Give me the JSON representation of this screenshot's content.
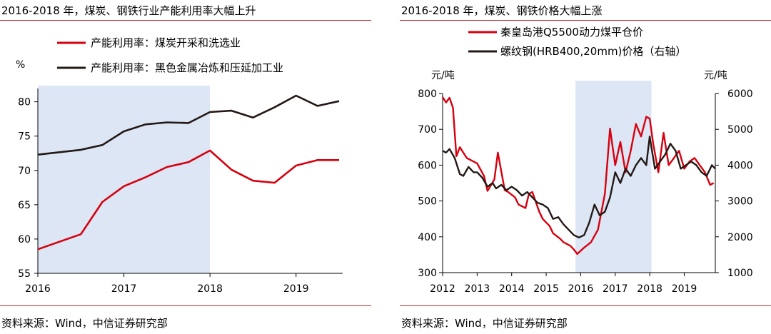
{
  "left": {
    "title": "2016-2018 年，煤炭、钢铁行业产能利用率大幅上升",
    "source": "资料来源：Wind，中信证券研究部"
  },
  "right": {
    "title": "2016-2018 年，煤炭、钢铁价格大幅上涨",
    "source": "资料来源：Wind，中信证券研究部"
  },
  "colors": {
    "red": "#d7000f",
    "black": "#231815",
    "shade": "#dce6f4",
    "rule": "#c0302b"
  },
  "chart_data": [
    {
      "type": "line",
      "title": "",
      "ylabel": "%",
      "xlim": [
        2016,
        2019.5
      ],
      "ylim": [
        55,
        81
      ],
      "yticks": [
        55,
        60,
        65,
        70,
        75,
        80
      ],
      "xticks": [
        2016,
        2017,
        2018,
        2019
      ],
      "shaded_range": [
        2016,
        2018
      ],
      "legend": "top",
      "series": [
        {
          "name": "产能利用率：煤炭开采和洗选业",
          "color": "#d7000f",
          "x": [
            2016,
            2016.5,
            2016.75,
            2017,
            2017.25,
            2017.5,
            2017.75,
            2018,
            2018.25,
            2018.5,
            2018.75,
            2019,
            2019.25,
            2019.5
          ],
          "y": [
            58.5,
            60.7,
            65.4,
            67.7,
            69.0,
            70.5,
            71.2,
            72.9,
            70.1,
            68.5,
            68.2,
            70.7,
            71.5,
            71.5
          ]
        },
        {
          "name": "产能利用率：黑色金属冶炼和压延加工业",
          "color": "#231815",
          "x": [
            2016,
            2016.5,
            2016.75,
            2017,
            2017.25,
            2017.5,
            2017.75,
            2018,
            2018.25,
            2018.5,
            2018.75,
            2019,
            2019.25,
            2019.5
          ],
          "y": [
            72.3,
            73.0,
            73.7,
            75.7,
            76.7,
            77.0,
            76.9,
            78.5,
            78.7,
            77.7,
            79.2,
            80.9,
            79.4,
            80.1
          ]
        }
      ]
    },
    {
      "type": "line",
      "title": "",
      "ylabel": "元/吨",
      "y2label": "元/吨",
      "xlim": [
        2012,
        2019.9
      ],
      "ylim": [
        300,
        800
      ],
      "y2lim": [
        1000,
        6000
      ],
      "yticks": [
        300,
        400,
        500,
        600,
        700,
        800
      ],
      "y2ticks": [
        1000,
        2000,
        3000,
        4000,
        5000,
        6000
      ],
      "xticks": [
        2012,
        2013,
        2014,
        2015,
        2016,
        2017,
        2018,
        2019
      ],
      "shaded_range": [
        2015.85,
        2018.05
      ],
      "legend": "top",
      "series": [
        {
          "name": "秦皇岛港Q5500动力煤平仓价",
          "color": "#d7000f",
          "axis": "left",
          "x": [
            2012.0,
            2012.1,
            2012.2,
            2012.3,
            2012.4,
            2012.5,
            2012.7,
            2012.8,
            2013.0,
            2013.2,
            2013.3,
            2013.5,
            2013.6,
            2013.8,
            2013.9,
            2014.1,
            2014.2,
            2014.4,
            2014.5,
            2014.6,
            2014.8,
            2014.9,
            2015.1,
            2015.2,
            2015.4,
            2015.5,
            2015.7,
            2015.8,
            2015.9,
            2016.1,
            2016.3,
            2016.5,
            2016.7,
            2016.85,
            2017.0,
            2017.15,
            2017.3,
            2017.45,
            2017.6,
            2017.75,
            2017.9,
            2018.0,
            2018.1,
            2018.25,
            2018.4,
            2018.55,
            2018.7,
            2018.85,
            2019.0,
            2019.15,
            2019.3,
            2019.45,
            2019.6,
            2019.75,
            2019.85
          ],
          "y": [
            790,
            775,
            788,
            760,
            625,
            650,
            620,
            615,
            605,
            570,
            528,
            560,
            635,
            530,
            525,
            510,
            490,
            480,
            520,
            525,
            470,
            450,
            430,
            410,
            395,
            385,
            375,
            365,
            352,
            370,
            385,
            420,
            520,
            702,
            600,
            665,
            580,
            640,
            715,
            680,
            735,
            730,
            660,
            580,
            690,
            600,
            620,
            640,
            590,
            610,
            620,
            600,
            580,
            545,
            550
          ]
        },
        {
          "name": "螺纹钢(HRB400,20mm)价格（右轴）",
          "color": "#231815",
          "axis": "right",
          "x": [
            2012.0,
            2012.1,
            2012.2,
            2012.35,
            2012.5,
            2012.6,
            2012.75,
            2012.9,
            2013.0,
            2013.15,
            2013.3,
            2013.45,
            2013.55,
            2013.7,
            2013.85,
            2014.0,
            2014.15,
            2014.3,
            2014.45,
            2014.6,
            2014.75,
            2014.9,
            2015.05,
            2015.2,
            2015.35,
            2015.5,
            2015.65,
            2015.8,
            2015.95,
            2016.1,
            2016.25,
            2016.4,
            2016.55,
            2016.7,
            2016.85,
            2017.0,
            2017.15,
            2017.3,
            2017.45,
            2017.6,
            2017.75,
            2017.9,
            2018.0,
            2018.15,
            2018.3,
            2018.45,
            2018.6,
            2018.75,
            2018.9,
            2019.05,
            2019.2,
            2019.35,
            2019.5,
            2019.65,
            2019.8,
            2019.9
          ],
          "y": [
            4400,
            4350,
            4450,
            4200,
            3750,
            3700,
            3950,
            3800,
            3800,
            3650,
            3400,
            3500,
            3350,
            3450,
            3300,
            3400,
            3300,
            3150,
            3250,
            3100,
            2950,
            2900,
            2800,
            2500,
            2550,
            2350,
            2200,
            2050,
            1980,
            2050,
            2400,
            2900,
            2600,
            2700,
            3100,
            3800,
            3500,
            3900,
            3700,
            4000,
            4200,
            4000,
            4800,
            3900,
            4100,
            4300,
            4600,
            4400,
            3900,
            4000,
            4100,
            4000,
            3800,
            3700,
            4000,
            3900
          ]
        }
      ]
    }
  ]
}
